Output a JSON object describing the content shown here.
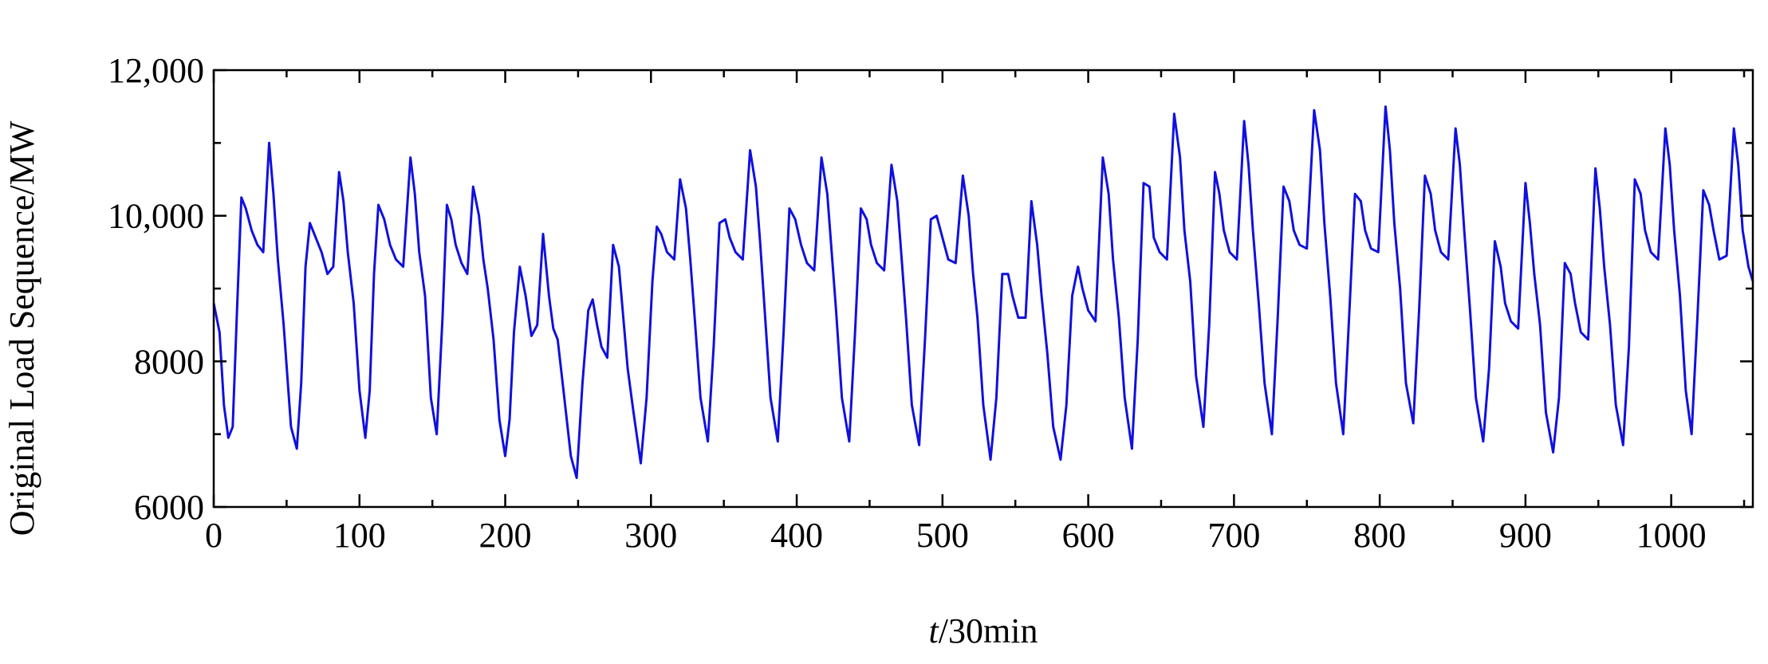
{
  "chart_data": {
    "type": "line",
    "title": "",
    "xlabel_italic": "t",
    "xlabel_rest": "/30min",
    "ylabel": "Original Load Sequence/MW",
    "xlim": [
      0,
      1056
    ],
    "ylim": [
      6000,
      12000
    ],
    "x_ticks": [
      0,
      100,
      200,
      300,
      400,
      500,
      600,
      700,
      800,
      900,
      1000
    ],
    "x_tick_labels": [
      "0",
      "100",
      "200",
      "300",
      "400",
      "500",
      "600",
      "700",
      "800",
      "900",
      "1000"
    ],
    "y_ticks": [
      6000,
      8000,
      10000,
      12000
    ],
    "y_tick_labels": [
      "6000",
      "8000",
      "10,000",
      "12,000"
    ],
    "grid": false,
    "legend": "none",
    "line_color": "#1010e0",
    "series": [
      {
        "x": [
          0,
          4,
          7,
          10,
          13,
          16,
          19,
          22,
          26,
          30,
          34,
          38,
          41,
          44,
          48,
          53,
          57,
          60,
          63,
          66,
          70,
          74,
          78,
          82,
          86,
          89,
          92,
          96,
          100,
          104,
          107,
          110,
          113,
          117,
          121,
          125,
          130,
          135,
          138,
          141,
          145,
          149,
          153,
          157,
          160,
          163,
          166,
          170,
          174,
          178,
          182,
          185,
          188,
          192,
          196,
          200,
          203,
          206,
          210,
          214,
          218,
          222,
          226,
          230,
          233,
          236,
          240,
          245,
          249,
          253,
          257,
          260,
          263,
          266,
          270,
          274,
          278,
          281,
          284,
          288,
          293,
          297,
          301,
          304,
          307,
          311,
          316,
          320,
          324,
          327,
          330,
          334,
          339,
          343,
          347,
          351,
          354,
          358,
          363,
          368,
          372,
          375,
          378,
          382,
          387,
          391,
          395,
          399,
          403,
          407,
          412,
          417,
          421,
          424,
          427,
          431,
          436,
          440,
          444,
          448,
          451,
          455,
          460,
          465,
          469,
          472,
          475,
          479,
          484,
          488,
          492,
          496,
          500,
          504,
          509,
          514,
          518,
          521,
          524,
          528,
          533,
          537,
          541,
          545,
          548,
          552,
          557,
          561,
          565,
          568,
          572,
          576,
          581,
          585,
          589,
          593,
          596,
          600,
          605,
          610,
          614,
          617,
          621,
          625,
          630,
          634,
          638,
          642,
          645,
          649,
          654,
          659,
          663,
          666,
          670,
          674,
          679,
          683,
          687,
          690,
          693,
          697,
          702,
          707,
          710,
          713,
          717,
          721,
          726,
          730,
          734,
          738,
          741,
          745,
          750,
          755,
          759,
          762,
          766,
          770,
          775,
          779,
          783,
          787,
          790,
          794,
          799,
          804,
          807,
          810,
          814,
          818,
          823,
          827,
          831,
          835,
          838,
          842,
          847,
          852,
          855,
          858,
          862,
          866,
          871,
          875,
          879,
          883,
          886,
          890,
          895,
          900,
          903,
          906,
          910,
          914,
          919,
          923,
          927,
          931,
          934,
          938,
          943,
          948,
          951,
          954,
          958,
          962,
          967,
          971,
          975,
          979,
          982,
          986,
          991,
          996,
          999,
          1002,
          1006,
          1010,
          1014,
          1018,
          1022,
          1026,
          1029,
          1033,
          1038,
          1043,
          1046,
          1049,
          1053,
          1056
        ],
        "y": [
          8800,
          8400,
          7400,
          6950,
          7100,
          8700,
          10250,
          10100,
          9800,
          9600,
          9500,
          11000,
          10300,
          9400,
          8500,
          7100,
          6800,
          7700,
          9300,
          9900,
          9700,
          9500,
          9200,
          9300,
          10600,
          10200,
          9500,
          8800,
          7600,
          6950,
          7600,
          9200,
          10150,
          9950,
          9600,
          9400,
          9300,
          10800,
          10300,
          9500,
          8900,
          7500,
          7000,
          8600,
          10150,
          9950,
          9600,
          9350,
          9200,
          10400,
          10000,
          9400,
          9000,
          8300,
          7200,
          6700,
          7200,
          8400,
          9300,
          8900,
          8350,
          8500,
          9750,
          8900,
          8450,
          8300,
          7600,
          6700,
          6400,
          7700,
          8700,
          8850,
          8500,
          8200,
          8050,
          9600,
          9300,
          8600,
          7900,
          7300,
          6600,
          7500,
          9100,
          9850,
          9750,
          9500,
          9400,
          10500,
          10100,
          9400,
          8600,
          7500,
          6900,
          8200,
          9900,
          9950,
          9700,
          9500,
          9400,
          10900,
          10400,
          9600,
          8700,
          7500,
          6900,
          8400,
          10100,
          9950,
          9600,
          9350,
          9250,
          10800,
          10300,
          9500,
          8700,
          7500,
          6900,
          8400,
          10100,
          9950,
          9600,
          9350,
          9250,
          10700,
          10200,
          9400,
          8600,
          7400,
          6850,
          8300,
          9950,
          10000,
          9700,
          9400,
          9350,
          10550,
          10000,
          9200,
          8600,
          7400,
          6650,
          7500,
          9200,
          9200,
          8900,
          8600,
          8600,
          10200,
          9600,
          8900,
          8100,
          7100,
          6650,
          7400,
          8900,
          9300,
          9000,
          8700,
          8550,
          10800,
          10300,
          9400,
          8600,
          7500,
          6800,
          8300,
          10450,
          10400,
          9700,
          9500,
          9400,
          11400,
          10800,
          9800,
          9100,
          7800,
          7100,
          8500,
          10600,
          10300,
          9800,
          9500,
          9400,
          11300,
          10700,
          9800,
          8800,
          7700,
          7000,
          8600,
          10400,
          10200,
          9800,
          9600,
          9550,
          11450,
          10900,
          9900,
          8900,
          7700,
          7000,
          8600,
          10300,
          10200,
          9800,
          9550,
          9500,
          11500,
          10900,
          9900,
          9000,
          7700,
          7150,
          8700,
          10550,
          10300,
          9800,
          9500,
          9400,
          11200,
          10700,
          9800,
          8700,
          7500,
          6900,
          7900,
          9650,
          9300,
          8800,
          8550,
          8450,
          10450,
          9900,
          9200,
          8500,
          7300,
          6750,
          7500,
          9350,
          9200,
          8800,
          8400,
          8300,
          10650,
          10100,
          9300,
          8500,
          7400,
          6850,
          8200,
          10500,
          10300,
          9800,
          9500,
          9400,
          11200,
          10700,
          9800,
          8900,
          7600,
          7000,
          8600,
          10350,
          10150,
          9800,
          9400,
          9450,
          11200,
          10700,
          9800,
          9300,
          9100
        ]
      }
    ]
  }
}
